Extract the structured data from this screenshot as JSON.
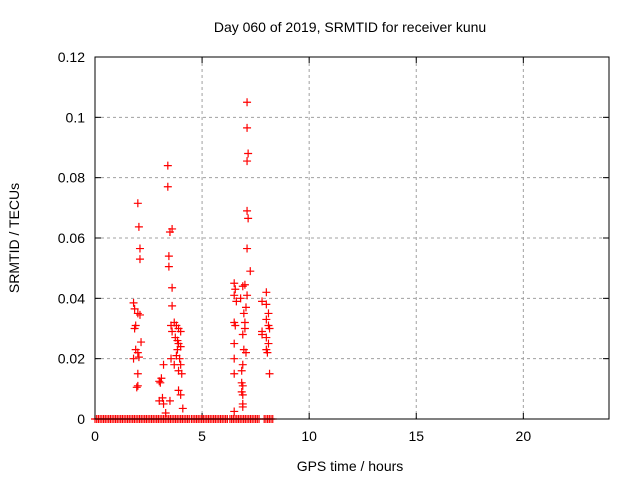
{
  "chart_data": {
    "type": "scatter",
    "title": "Day 060 of 2019, SRMTID for receiver kunu",
    "xlabel": "GPS time / hours",
    "ylabel": "SRMTID / TECUs",
    "xlim": [
      0,
      24
    ],
    "ylim": [
      0,
      0.12
    ],
    "xticks": [
      "0",
      "5",
      "10",
      "15",
      "20"
    ],
    "xtick_values": [
      0,
      5,
      10,
      15,
      20
    ],
    "yticks": [
      "0",
      "0.02",
      "0.04",
      "0.06",
      "0.08",
      "0.1",
      "0.12"
    ],
    "ytick_values": [
      0,
      0.02,
      0.04,
      0.06,
      0.08,
      0.1,
      0.12
    ],
    "grid": true,
    "marker": "plus",
    "color": "#ff0000",
    "points": [
      [
        2.0,
        0.0715
      ],
      [
        2.05,
        0.0637
      ],
      [
        2.1,
        0.0565
      ],
      [
        2.1,
        0.053
      ],
      [
        1.8,
        0.0385
      ],
      [
        1.85,
        0.0365
      ],
      [
        2.0,
        0.035
      ],
      [
        2.1,
        0.0345
      ],
      [
        1.9,
        0.031
      ],
      [
        1.85,
        0.03
      ],
      [
        2.15,
        0.0255
      ],
      [
        1.9,
        0.023
      ],
      [
        2.0,
        0.022
      ],
      [
        1.8,
        0.02
      ],
      [
        2.05,
        0.0205
      ],
      [
        2.0,
        0.015
      ],
      [
        2.0,
        0.011
      ],
      [
        1.95,
        0.0105
      ],
      [
        3.4,
        0.084
      ],
      [
        3.4,
        0.077
      ],
      [
        3.6,
        0.063
      ],
      [
        3.5,
        0.062
      ],
      [
        3.45,
        0.054
      ],
      [
        3.45,
        0.0505
      ],
      [
        3.6,
        0.0435
      ],
      [
        3.6,
        0.0375
      ],
      [
        3.55,
        0.031
      ],
      [
        3.7,
        0.032
      ],
      [
        3.8,
        0.031
      ],
      [
        3.9,
        0.03
      ],
      [
        4.0,
        0.029
      ],
      [
        3.6,
        0.029
      ],
      [
        3.75,
        0.027
      ],
      [
        3.85,
        0.026
      ],
      [
        3.9,
        0.025
      ],
      [
        4.0,
        0.024
      ],
      [
        3.85,
        0.023
      ],
      [
        3.8,
        0.021
      ],
      [
        3.55,
        0.02
      ],
      [
        3.95,
        0.02
      ],
      [
        4.0,
        0.018
      ],
      [
        3.7,
        0.018
      ],
      [
        3.9,
        0.016
      ],
      [
        4.05,
        0.015
      ],
      [
        3.2,
        0.018
      ],
      [
        3.1,
        0.0135
      ],
      [
        3.05,
        0.012
      ],
      [
        3.0,
        0.0125
      ],
      [
        3.15,
        0.007
      ],
      [
        3.0,
        0.006
      ],
      [
        3.2,
        0.005
      ],
      [
        3.5,
        0.006
      ],
      [
        3.9,
        0.0095
      ],
      [
        4.0,
        0.008
      ],
      [
        3.3,
        0.002
      ],
      [
        4.1,
        0.0035
      ],
      [
        7.1,
        0.105
      ],
      [
        7.1,
        0.0965
      ],
      [
        7.15,
        0.088
      ],
      [
        7.1,
        0.0855
      ],
      [
        7.1,
        0.069
      ],
      [
        7.15,
        0.0665
      ],
      [
        7.1,
        0.0565
      ],
      [
        7.25,
        0.049
      ],
      [
        6.5,
        0.045
      ],
      [
        6.55,
        0.043
      ],
      [
        6.5,
        0.041
      ],
      [
        6.6,
        0.039
      ],
      [
        6.9,
        0.044
      ],
      [
        7.0,
        0.0445
      ],
      [
        6.8,
        0.04
      ],
      [
        7.1,
        0.041
      ],
      [
        7.05,
        0.037
      ],
      [
        6.95,
        0.035
      ],
      [
        7.0,
        0.032
      ],
      [
        6.5,
        0.032
      ],
      [
        6.55,
        0.031
      ],
      [
        7.0,
        0.03
      ],
      [
        6.9,
        0.028
      ],
      [
        6.5,
        0.025
      ],
      [
        6.95,
        0.023
      ],
      [
        7.05,
        0.022
      ],
      [
        6.5,
        0.02
      ],
      [
        6.9,
        0.018
      ],
      [
        6.85,
        0.016
      ],
      [
        6.5,
        0.015
      ],
      [
        6.85,
        0.012
      ],
      [
        6.9,
        0.011
      ],
      [
        6.85,
        0.009
      ],
      [
        6.9,
        0.008
      ],
      [
        6.9,
        0.005
      ],
      [
        6.9,
        0.004
      ],
      [
        6.5,
        0.0025
      ],
      [
        8.0,
        0.042
      ],
      [
        7.8,
        0.039
      ],
      [
        8.0,
        0.038
      ],
      [
        8.1,
        0.035
      ],
      [
        8.0,
        0.033
      ],
      [
        8.1,
        0.031
      ],
      [
        8.15,
        0.03
      ],
      [
        7.8,
        0.029
      ],
      [
        7.8,
        0.028
      ],
      [
        8.0,
        0.027
      ],
      [
        8.1,
        0.025
      ],
      [
        8.0,
        0.023
      ],
      [
        8.05,
        0.022
      ],
      [
        8.15,
        0.015
      ]
    ],
    "zero_value_x_ranges": [
      [
        0,
        4.4
      ],
      [
        4.5,
        6.2
      ],
      [
        6.3,
        7.7
      ],
      [
        7.9,
        8.3
      ]
    ],
    "zero_value_step": 0.08
  }
}
